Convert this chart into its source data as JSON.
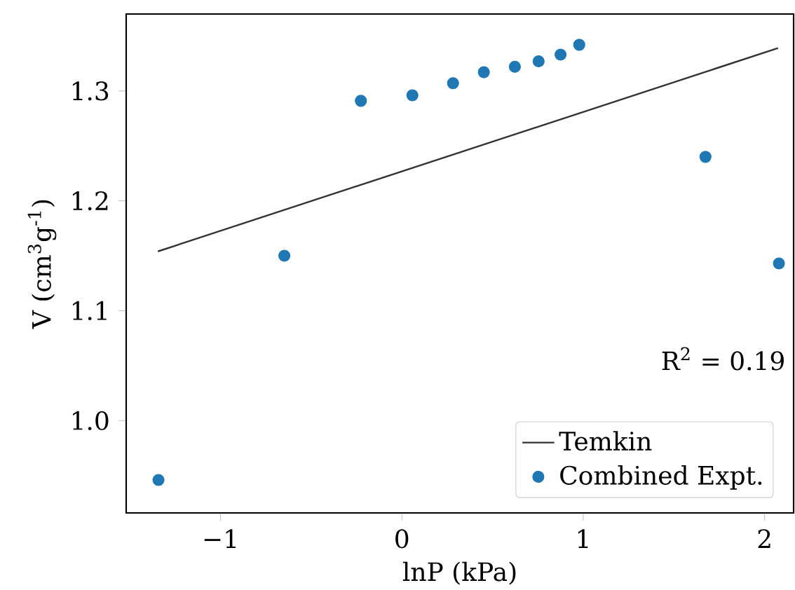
{
  "chart_data": {
    "type": "scatter",
    "xlabel": "lnP (kPa)",
    "ylabel": "V (cm$^{3}$g$^{-1}$)",
    "xlim": [
      -1.52,
      2.16
    ],
    "ylim": [
      0.916,
      1.37
    ],
    "xticks": [
      {
        "value": -1,
        "label": "−1"
      },
      0,
      1,
      2
    ],
    "yticks": [
      {
        "value": 1.0,
        "label": "1.0"
      },
      1.1,
      1.2,
      1.3
    ],
    "series": [
      {
        "name": "Temkin",
        "type": "line",
        "color": "#333333",
        "marker": "none",
        "line_style": "solid",
        "x": [
          -1.345,
          2.074
        ],
        "values": [
          1.154,
          1.339
        ]
      },
      {
        "name": "Combined Expt.",
        "color": "#1f77b4",
        "marker": "circle",
        "x": [
          -1.342,
          -0.648,
          -0.226,
          0.058,
          0.282,
          0.452,
          0.623,
          0.754,
          0.875,
          0.978,
          1.674,
          2.079
        ],
        "values": [
          0.946,
          1.15,
          1.291,
          1.296,
          1.307,
          1.317,
          1.322,
          1.327,
          1.333,
          1.342,
          1.24,
          1.143
        ]
      }
    ],
    "annotations": [
      "R$^{2}$ = 0.19"
    ],
    "legend": "bottom right",
    "grid": false
  }
}
